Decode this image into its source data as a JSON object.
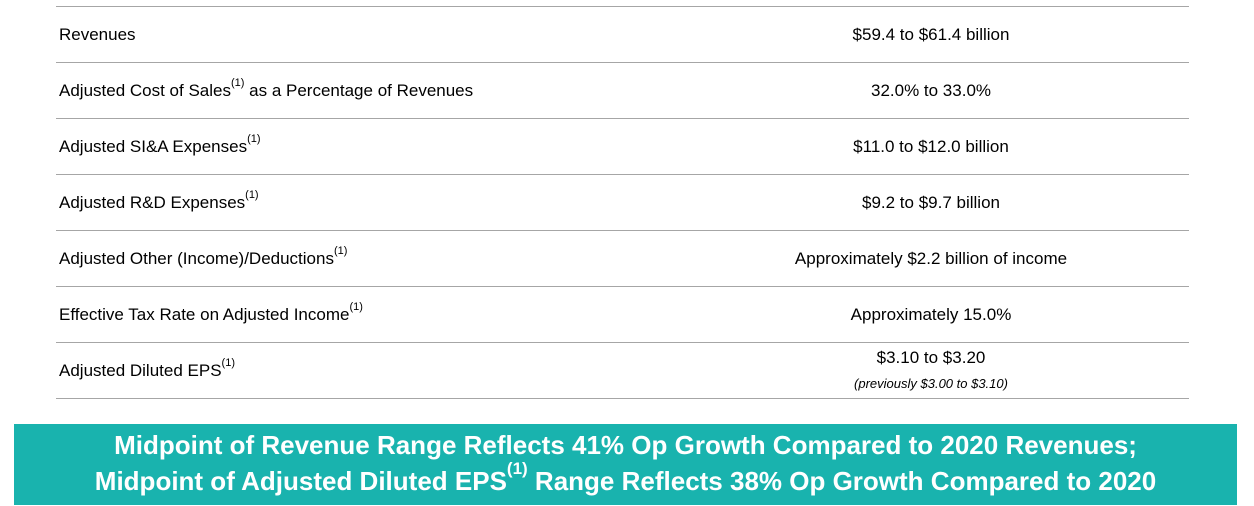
{
  "table": {
    "rows": [
      {
        "label": "Revenues",
        "footnote": "",
        "value": "$59.4 to $61.4 billion"
      },
      {
        "label": "Adjusted Cost of Sales",
        "footnote": "(1)",
        "label_suffix": " as a Percentage of Revenues",
        "value": "32.0% to 33.0%"
      },
      {
        "label": "Adjusted SI&A Expenses",
        "footnote": "(1)",
        "value": "$11.0 to $12.0 billion"
      },
      {
        "label": "Adjusted R&D Expenses",
        "footnote": "(1)",
        "value": "$9.2 to $9.7 billion"
      },
      {
        "label": "Adjusted Other (Income)/Deductions",
        "footnote": "(1)",
        "value": "Approximately $2.2 billion of income"
      },
      {
        "label": "Effective Tax Rate on Adjusted Income",
        "footnote": "(1)",
        "value": "Approximately 15.0%"
      },
      {
        "label": "Adjusted Diluted EPS",
        "footnote": "(1)",
        "value": "$3.10 to $3.20",
        "note": "(previously $3.00 to $3.10)"
      }
    ]
  },
  "banner": {
    "line1": "Midpoint of Revenue Range Reflects 41% Op Growth Compared to 2020 Revenues;",
    "line2_pre": "Midpoint of Adjusted Diluted EPS",
    "line2_footnote": "(1)",
    "line2_post": " Range Reflects 38% Op Growth Compared to 2020",
    "color": "#19b3ae"
  }
}
